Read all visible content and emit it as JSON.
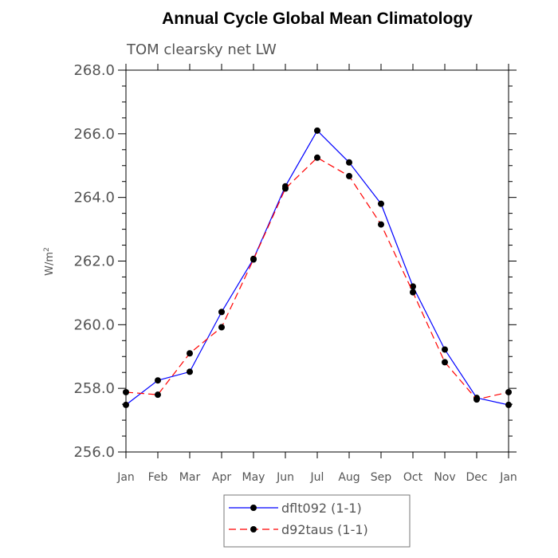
{
  "chart_data": {
    "type": "line",
    "title": "Annual Cycle Global Mean Climatology",
    "subtitle": "TOM clearsky net LW",
    "ylabel_main": "W/m",
    "ylabel_sup": "2",
    "xlabel": "",
    "categories": [
      "Jan",
      "Feb",
      "Mar",
      "Apr",
      "May",
      "Jun",
      "Jul",
      "Aug",
      "Sep",
      "Oct",
      "Nov",
      "Dec",
      "Jan"
    ],
    "ylim": [
      256.0,
      268.0
    ],
    "yticks": [
      "256.0",
      "258.0",
      "260.0",
      "262.0",
      "264.0",
      "266.0",
      "268.0"
    ],
    "grid": false,
    "legend_position": "bottom",
    "series": [
      {
        "name": "dflt092 (1-1)",
        "color": "#0000ff",
        "dash": "solid",
        "marker": "filled-circle",
        "values": [
          257.48,
          258.25,
          258.52,
          260.4,
          262.07,
          264.35,
          266.1,
          265.1,
          263.8,
          261.2,
          259.22,
          257.7,
          257.48
        ]
      },
      {
        "name": "d92taus (1-1)",
        "color": "#ff0000",
        "dash": "dashed",
        "marker": "filled-circle",
        "values": [
          257.88,
          257.8,
          259.1,
          259.92,
          262.05,
          264.28,
          265.25,
          264.67,
          263.15,
          261.02,
          258.82,
          257.65,
          257.88
        ]
      }
    ]
  }
}
